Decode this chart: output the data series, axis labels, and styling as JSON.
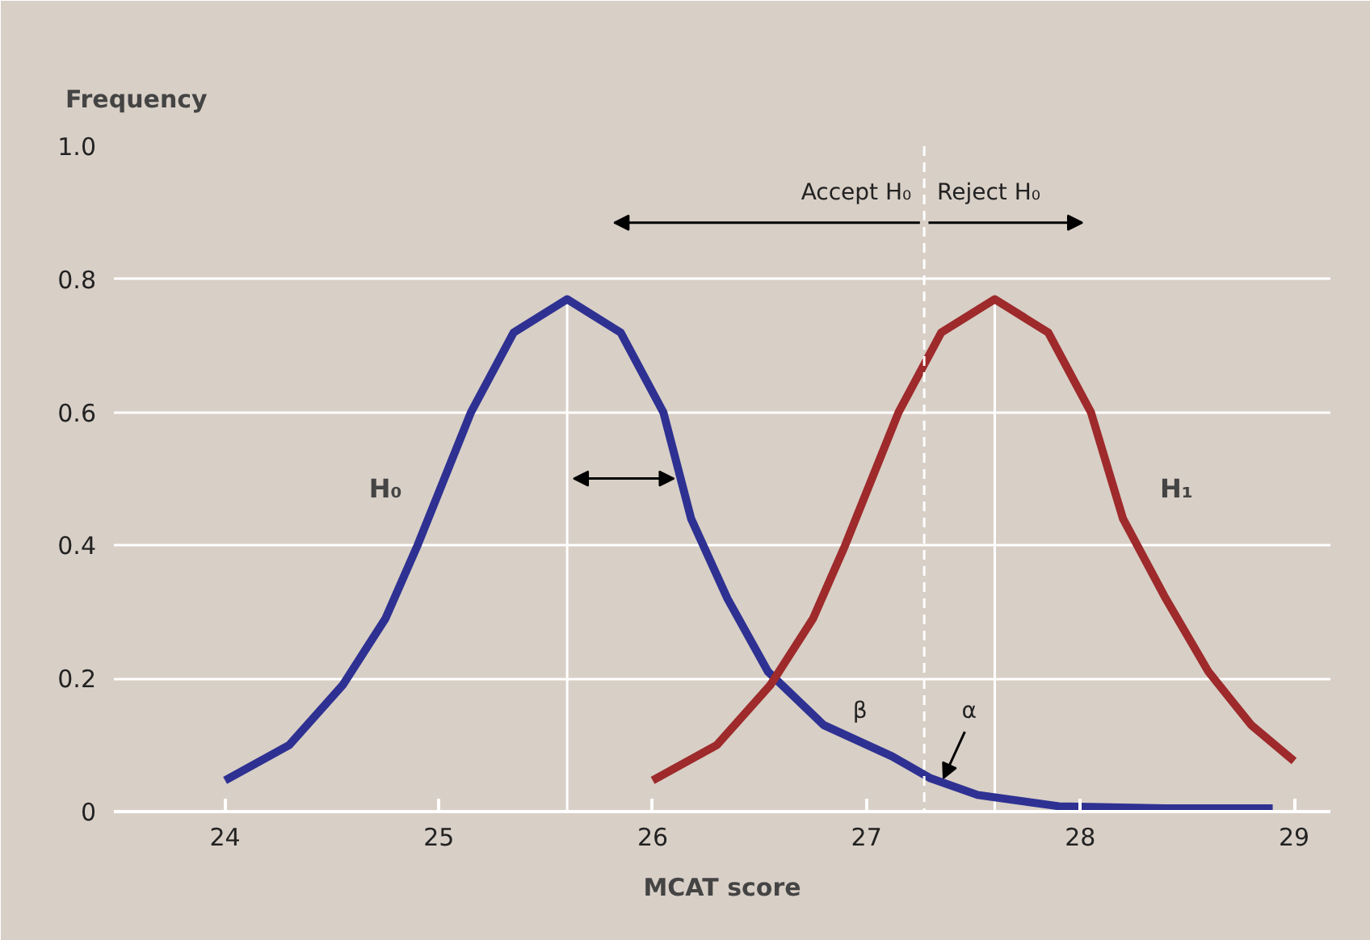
{
  "chart_data": {
    "type": "line",
    "xlabel": "MCAT score",
    "ylabel": "Frequency",
    "xlim": [
      23.48,
      29.17
    ],
    "ylim": [
      0,
      1.0
    ],
    "xticks": [
      24,
      25,
      26,
      27,
      28,
      29
    ],
    "yticks": [
      {
        "value": 0,
        "label": "0"
      },
      0.2,
      0.4,
      0.6,
      0.8,
      {
        "value": 1.0,
        "label": "1.0"
      }
    ],
    "grid": "y",
    "marker": "none",
    "line_style": "solid",
    "series": [
      {
        "name": "H₀",
        "color": "#2e3192",
        "x": [
          24,
          24.3,
          24.55,
          24.75,
          24.9,
          25.15,
          25.35,
          25.6,
          25.85,
          26.05,
          26.18,
          26.35,
          26.54,
          26.8,
          27.12,
          27.3,
          27.52,
          27.9,
          28.4,
          28.9
        ],
        "values": [
          0.047,
          0.1,
          0.19,
          0.29,
          0.4,
          0.6,
          0.72,
          0.77,
          0.72,
          0.6,
          0.44,
          0.32,
          0.21,
          0.13,
          0.083,
          0.05,
          0.025,
          0.008,
          0.005,
          0.005
        ]
      },
      {
        "name": "H₁",
        "color": "#9e2a2b",
        "x": [
          26.0,
          26.3,
          26.55,
          26.75,
          26.9,
          27.15,
          27.35,
          27.6,
          27.85,
          28.05,
          28.2,
          28.4,
          28.6,
          28.8,
          29.0
        ],
        "values": [
          0.047,
          0.1,
          0.19,
          0.29,
          0.4,
          0.6,
          0.72,
          0.77,
          0.72,
          0.6,
          0.44,
          0.32,
          0.21,
          0.13,
          0.076
        ]
      }
    ],
    "ref_lines": [
      {
        "axis": "x",
        "value": 27.27,
        "color": "#ffffff",
        "line_style": "dashed"
      },
      {
        "axis": "x",
        "value": 25.6,
        "color": "#ffffff",
        "line_style": "solid"
      },
      {
        "axis": "x",
        "value": 27.6,
        "color": "#ffffff",
        "line_style": "solid"
      }
    ],
    "annotations": [
      "Accept H₀",
      "Reject H₀",
      "β",
      {
        "text": "α",
        "x": 27.36,
        "y": 0.045
      }
    ]
  }
}
